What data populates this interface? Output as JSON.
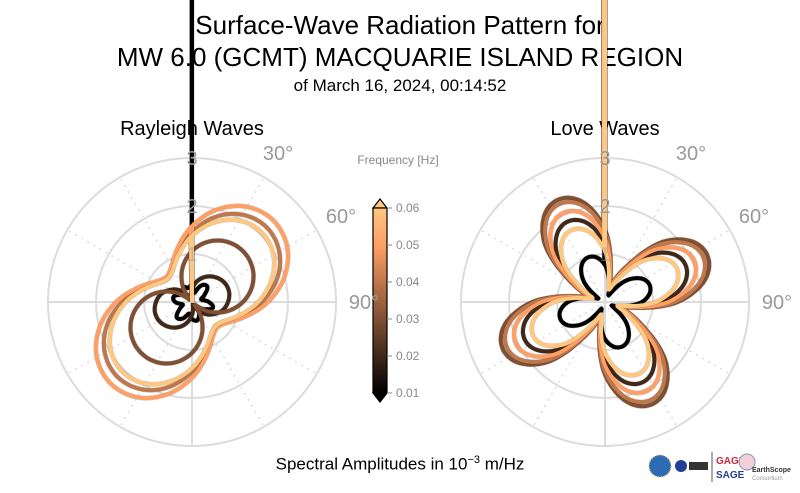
{
  "title": {
    "line1": "Surface-Wave Radiation Pattern for",
    "line2": "MW 6.0 (GCMT) MACQUARIE ISLAND REGION",
    "line3": "of March 16, 2024, 00:14:52"
  },
  "colorbar": {
    "label": "Frequency [Hz]",
    "colormap": "copper",
    "color_min": "#000000",
    "color_max": "#ffc77f",
    "ticks": [
      "0.01",
      "0.02",
      "0.03",
      "0.04",
      "0.05",
      "0.06"
    ],
    "range": [
      0.01,
      0.06
    ],
    "extend": "both"
  },
  "xlabel": {
    "prefix": "Spectral Amplitudes in 10",
    "exponent": "−3",
    "unit": " m/Hz"
  },
  "logos": {
    "gage": "GAGE",
    "sage": "SAGE",
    "earthscope": "EarthScope",
    "consortium": "Consortium",
    "nsf": "NSF",
    "nasa": "NASA",
    "usgs": "USGS"
  },
  "chart_data": [
    {
      "type": "polar-line",
      "title": "Rayleigh Waves",
      "theta_direction": "clockwise",
      "theta_zero": "top",
      "rlim": [
        0,
        3
      ],
      "r_ticks": [
        "1",
        "2",
        "3"
      ],
      "theta_tick_labels": [
        "30°",
        "60°",
        "90°"
      ],
      "grid": true,
      "azimuth_deg": [
        0,
        15,
        30,
        45,
        60,
        75,
        90,
        105,
        120,
        135,
        150,
        165,
        180,
        195,
        210,
        225,
        240,
        255,
        270,
        285,
        300,
        315,
        330,
        345
      ],
      "series": [
        {
          "frequency": 0.01,
          "r": [
            0.35,
            0.2,
            0.4,
            0.45,
            0.3,
            0.2,
            0.35,
            0.45,
            0.3,
            0.15,
            0.3,
            0.4,
            0.35,
            0.25,
            0.4,
            0.45,
            0.3,
            0.2,
            0.35,
            0.4,
            0.3,
            0.2,
            0.35,
            0.3
          ]
        },
        {
          "frequency": 0.02,
          "r": [
            0.27,
            0.46,
            0.61,
            0.72,
            0.79,
            0.8,
            0.75,
            0.66,
            0.51,
            0.34,
            0.14,
            0.07,
            0.27,
            0.46,
            0.61,
            0.72,
            0.79,
            0.8,
            0.75,
            0.66,
            0.51,
            0.34,
            0.14,
            0.07
          ]
        },
        {
          "frequency": 0.03,
          "r": [
            1.06,
            1.3,
            1.45,
            1.5,
            1.45,
            1.3,
            1.06,
            0.75,
            0.39,
            0.05,
            0.39,
            0.75,
            1.06,
            1.3,
            1.45,
            1.5,
            1.45,
            1.3,
            1.06,
            0.75,
            0.39,
            0.05,
            0.39,
            0.75
          ]
        },
        {
          "frequency": 0.04,
          "r": [
            1.45,
            1.83,
            2.1,
            2.2,
            2.1,
            1.83,
            1.45,
            1.08,
            0.8,
            0.7,
            0.8,
            1.08,
            1.45,
            1.83,
            2.1,
            2.2,
            2.1,
            1.83,
            1.45,
            1.08,
            0.8,
            0.7,
            0.8,
            1.08
          ]
        },
        {
          "frequency": 0.05,
          "r": [
            1.58,
            1.99,
            2.29,
            2.4,
            2.29,
            1.99,
            1.58,
            1.16,
            0.86,
            0.75,
            0.86,
            1.16,
            1.58,
            1.99,
            2.29,
            2.4,
            2.29,
            1.99,
            1.58,
            1.16,
            0.86,
            0.75,
            0.86,
            1.16
          ]
        },
        {
          "frequency": 0.06,
          "r": [
            1.38,
            1.71,
            1.96,
            2.05,
            1.96,
            1.71,
            1.38,
            1.04,
            0.79,
            0.7,
            0.79,
            1.04,
            1.38,
            1.71,
            1.96,
            2.05,
            1.96,
            1.71,
            1.38,
            1.04,
            0.79,
            0.7,
            0.79,
            1.04
          ]
        }
      ]
    },
    {
      "type": "polar-line",
      "title": "Love Waves",
      "theta_direction": "clockwise",
      "theta_zero": "top",
      "rlim": [
        0,
        3
      ],
      "r_ticks": [
        "1",
        "2",
        "3"
      ],
      "theta_tick_labels": [
        "30°",
        "60°",
        "90°"
      ],
      "grid": true,
      "azimuth_deg": [
        0,
        15,
        30,
        45,
        60,
        75,
        90,
        105,
        120,
        135,
        150,
        165,
        180,
        195,
        210,
        225,
        240,
        255,
        270,
        285,
        300,
        315,
        330,
        345
      ],
      "series": [
        {
          "frequency": 0.01,
          "r": [
            0.77,
            0.34,
            0.17,
            0.64,
            0.94,
            0.98,
            0.77,
            0.34,
            0.17,
            0.64,
            0.94,
            0.98,
            0.77,
            0.34,
            0.17,
            0.64,
            0.94,
            0.98,
            0.77,
            0.34,
            0.17,
            0.64,
            0.94,
            0.98
          ]
        },
        {
          "frequency": 0.02,
          "r": [
            1.19,
            0.32,
            0.63,
            1.42,
            1.82,
            1.74,
            1.19,
            0.32,
            0.63,
            1.42,
            1.82,
            1.74,
            1.19,
            0.32,
            0.63,
            1.42,
            1.82,
            1.74,
            1.19,
            0.32,
            0.63,
            1.42,
            1.82,
            1.74
          ]
        },
        {
          "frequency": 0.03,
          "r": [
            1.51,
            0.41,
            0.8,
            1.8,
            2.31,
            2.21,
            1.51,
            0.41,
            0.8,
            1.8,
            2.31,
            2.21,
            1.51,
            0.41,
            0.8,
            1.8,
            2.31,
            2.21,
            1.51,
            0.41,
            0.8,
            1.8,
            2.31,
            2.21
          ]
        },
        {
          "frequency": 0.04,
          "r": [
            1.45,
            0.39,
            0.77,
            1.72,
            2.22,
            2.12,
            1.45,
            0.39,
            0.77,
            1.72,
            2.22,
            2.12,
            1.45,
            0.39,
            0.77,
            1.72,
            2.22,
            2.12,
            1.45,
            0.39,
            0.77,
            1.72,
            2.22,
            2.12
          ]
        },
        {
          "frequency": 0.05,
          "r": [
            1.32,
            0.36,
            0.7,
            1.57,
            2.02,
            1.93,
            1.32,
            0.36,
            0.7,
            1.57,
            2.02,
            1.93,
            1.32,
            0.36,
            0.7,
            1.57,
            2.02,
            1.93,
            1.32,
            0.36,
            0.7,
            1.57,
            2.02,
            1.93
          ]
        },
        {
          "frequency": 0.06,
          "r": [
            1.06,
            0.29,
            0.56,
            1.26,
            1.63,
            1.55,
            1.06,
            0.29,
            0.56,
            1.26,
            1.63,
            1.55,
            1.06,
            0.29,
            0.56,
            1.26,
            1.63,
            1.55,
            1.06,
            0.29,
            0.56,
            1.26,
            1.63,
            1.55
          ]
        }
      ]
    }
  ]
}
